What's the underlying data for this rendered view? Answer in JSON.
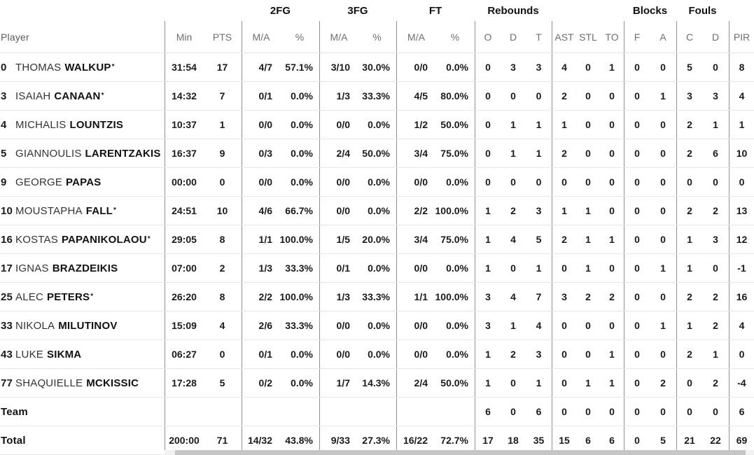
{
  "table_name": "basketball-box-score",
  "colors": {
    "text": "#1a1a1a",
    "header_text": "#6e6e6e",
    "group_divider": "#8f8f8f",
    "row_divider": "#e8e8e8",
    "scroll_track": "#f1f1f1",
    "scroll_thumb": "#c6c6c6"
  },
  "groups": [
    {
      "id": "2fg",
      "label": "2FG"
    },
    {
      "id": "3fg",
      "label": "3FG"
    },
    {
      "id": "ft",
      "label": "FT"
    },
    {
      "id": "rebounds",
      "label": "Rebounds"
    },
    {
      "id": "blocks",
      "label": "Blocks"
    },
    {
      "id": "fouls",
      "label": "Fouls"
    }
  ],
  "columns": {
    "player": "Player",
    "stats": [
      "Min",
      "PTS",
      "M/A",
      "%",
      "M/A",
      "%",
      "M/A",
      "%",
      "O",
      "D",
      "T",
      "AST",
      "STL",
      "TO",
      "F",
      "A",
      "C",
      "D",
      "PIR"
    ]
  },
  "stat_keys": [
    "min",
    "pts",
    "2fg-ma",
    "2fg-pct",
    "3fg-ma",
    "3fg-pct",
    "ft-ma",
    "ft-pct",
    "reb-o",
    "reb-d",
    "reb-t",
    "ast",
    "stl",
    "to",
    "blk-f",
    "blk-a",
    "foul-c",
    "foul-d",
    "pir"
  ],
  "starter_mark": "*",
  "players": [
    {
      "num": "0",
      "first": "THOMAS",
      "last": "WALKUP",
      "starter": true,
      "stats": [
        "31:54",
        "17",
        "4/7",
        "57.1%",
        "3/10",
        "30.0%",
        "0/0",
        "0.0%",
        "0",
        "3",
        "3",
        "4",
        "0",
        "1",
        "0",
        "0",
        "5",
        "0",
        "8"
      ]
    },
    {
      "num": "3",
      "first": "ISAIAH",
      "last": "CANAAN",
      "starter": true,
      "stats": [
        "14:32",
        "7",
        "0/1",
        "0.0%",
        "1/3",
        "33.3%",
        "4/5",
        "80.0%",
        "0",
        "0",
        "0",
        "2",
        "0",
        "0",
        "0",
        "1",
        "3",
        "3",
        "4"
      ]
    },
    {
      "num": "4",
      "first": "MICHALIS",
      "last": "LOUNTZIS",
      "starter": false,
      "stats": [
        "10:37",
        "1",
        "0/0",
        "0.0%",
        "0/0",
        "0.0%",
        "1/2",
        "50.0%",
        "0",
        "1",
        "1",
        "1",
        "0",
        "0",
        "0",
        "0",
        "2",
        "1",
        "1"
      ]
    },
    {
      "num": "5",
      "first": "GIANNOULIS",
      "last": "LARENTZAKIS",
      "starter": false,
      "stats": [
        "16:37",
        "9",
        "0/3",
        "0.0%",
        "2/4",
        "50.0%",
        "3/4",
        "75.0%",
        "0",
        "1",
        "1",
        "2",
        "0",
        "0",
        "0",
        "0",
        "2",
        "6",
        "10"
      ]
    },
    {
      "num": "9",
      "first": "GEORGE",
      "last": "PAPAS",
      "starter": false,
      "stats": [
        "00:00",
        "0",
        "0/0",
        "0.0%",
        "0/0",
        "0.0%",
        "0/0",
        "0.0%",
        "0",
        "0",
        "0",
        "0",
        "0",
        "0",
        "0",
        "0",
        "0",
        "0",
        "0"
      ]
    },
    {
      "num": "10",
      "first": "MOUSTAPHA",
      "last": "FALL",
      "starter": true,
      "stats": [
        "24:51",
        "10",
        "4/6",
        "66.7%",
        "0/0",
        "0.0%",
        "2/2",
        "100.0%",
        "1",
        "2",
        "3",
        "1",
        "1",
        "0",
        "0",
        "0",
        "2",
        "2",
        "13"
      ]
    },
    {
      "num": "16",
      "first": "KOSTAS",
      "last": "PAPANIKOLAOU",
      "starter": true,
      "stats": [
        "29:05",
        "8",
        "1/1",
        "100.0%",
        "1/5",
        "20.0%",
        "3/4",
        "75.0%",
        "1",
        "4",
        "5",
        "2",
        "1",
        "1",
        "0",
        "0",
        "1",
        "3",
        "12"
      ]
    },
    {
      "num": "17",
      "first": "IGNAS",
      "last": "BRAZDEIKIS",
      "starter": false,
      "stats": [
        "07:00",
        "2",
        "1/3",
        "33.3%",
        "0/1",
        "0.0%",
        "0/0",
        "0.0%",
        "1",
        "0",
        "1",
        "0",
        "1",
        "0",
        "0",
        "1",
        "1",
        "0",
        "-1"
      ]
    },
    {
      "num": "25",
      "first": "ALEC",
      "last": "PETERS",
      "starter": true,
      "stats": [
        "26:20",
        "8",
        "2/2",
        "100.0%",
        "1/3",
        "33.3%",
        "1/1",
        "100.0%",
        "3",
        "4",
        "7",
        "3",
        "2",
        "2",
        "0",
        "0",
        "2",
        "2",
        "16"
      ]
    },
    {
      "num": "33",
      "first": "NIKOLA",
      "last": "MILUTINOV",
      "starter": false,
      "stats": [
        "15:09",
        "4",
        "2/6",
        "33.3%",
        "0/0",
        "0.0%",
        "0/0",
        "0.0%",
        "3",
        "1",
        "4",
        "0",
        "0",
        "0",
        "0",
        "1",
        "1",
        "2",
        "4"
      ]
    },
    {
      "num": "43",
      "first": "LUKE",
      "last": "SIKMA",
      "starter": false,
      "stats": [
        "06:27",
        "0",
        "0/1",
        "0.0%",
        "0/0",
        "0.0%",
        "0/0",
        "0.0%",
        "1",
        "2",
        "3",
        "0",
        "0",
        "1",
        "0",
        "0",
        "2",
        "1",
        "0"
      ]
    },
    {
      "num": "77",
      "first": "SHAQUIELLE",
      "last": "MCKISSIC",
      "starter": false,
      "stats": [
        "17:28",
        "5",
        "0/2",
        "0.0%",
        "1/7",
        "14.3%",
        "2/4",
        "50.0%",
        "1",
        "0",
        "1",
        "0",
        "1",
        "1",
        "0",
        "2",
        "0",
        "2",
        "-4"
      ]
    }
  ],
  "team_row": {
    "label": "Team",
    "stats": [
      "",
      "",
      "",
      "",
      "",
      "",
      "",
      "",
      "6",
      "0",
      "6",
      "0",
      "0",
      "0",
      "0",
      "0",
      "0",
      "0",
      "6"
    ]
  },
  "total_row": {
    "label": "Total",
    "stats": [
      "200:00",
      "71",
      "14/32",
      "43.8%",
      "9/33",
      "27.3%",
      "16/22",
      "72.7%",
      "17",
      "18",
      "35",
      "15",
      "6",
      "6",
      "0",
      "5",
      "21",
      "22",
      "69"
    ]
  }
}
